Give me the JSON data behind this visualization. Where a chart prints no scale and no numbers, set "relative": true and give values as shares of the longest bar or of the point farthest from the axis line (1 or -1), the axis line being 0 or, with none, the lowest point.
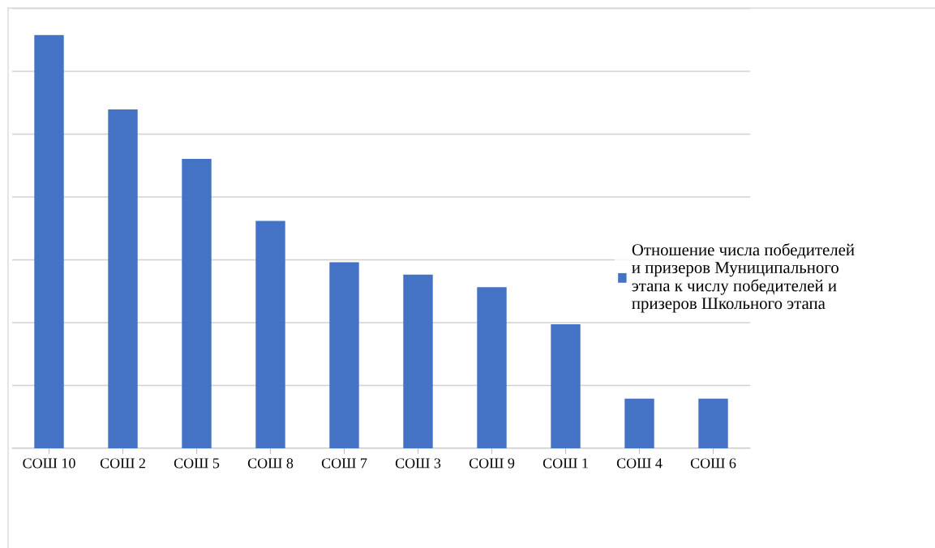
{
  "chart_data": {
    "type": "bar",
    "relative": true,
    "grid": "y",
    "legend": "right",
    "categories": [
      "СОШ 10",
      "СОШ 2",
      "СОШ 5",
      "СОШ 8",
      "СОШ 7",
      "СОШ 3",
      "СОШ 9",
      "СОШ 1",
      "СОШ 4",
      "СОШ 6"
    ],
    "series": [
      {
        "name": "Отношение числа победителей и призеров Муниципального этапа к числу победителей и призеров Школьного этапа",
        "color": "#4472c4",
        "values": [
          1,
          0.82,
          0.7,
          0.55,
          0.45,
          0.42,
          0.39,
          0.3,
          0.12,
          0.12
        ]
      }
    ]
  }
}
